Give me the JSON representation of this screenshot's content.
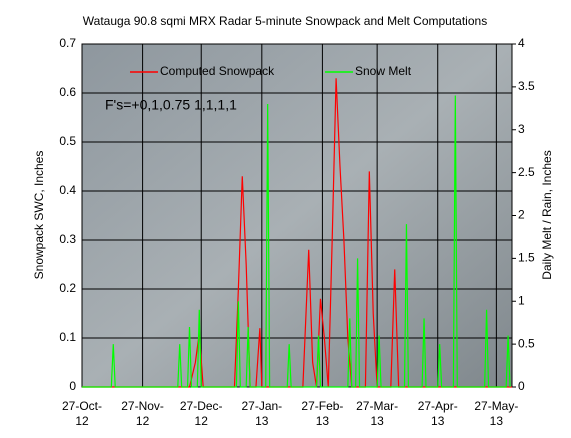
{
  "chart_data": {
    "type": "line",
    "title": "Watauga 90.8 sqmi MRX Radar 5-minute Snowpack and Melt Computations",
    "annotation": "F's=+0,1,0.75 1,1,1,1",
    "ylabel": "Snowpack SWC, Inches",
    "y2label": "Daily Melt / Rain, Inches",
    "xlim": [
      0,
      220
    ],
    "xticks": [
      {
        "value": 0,
        "label": "27-Oct-\n12"
      },
      {
        "value": 31,
        "label": "27-Nov-\n12"
      },
      {
        "value": 61,
        "label": "27-Dec-\n12"
      },
      {
        "value": 92,
        "label": "27-Jan-\n13"
      },
      {
        "value": 123,
        "label": "27-Feb-\n13"
      },
      {
        "value": 151,
        "label": "27-Mar-\n13"
      },
      {
        "value": 182,
        "label": "27-Apr-\n13"
      },
      {
        "value": 212,
        "label": "27-May-\n13"
      }
    ],
    "ylim": [
      0,
      0.7
    ],
    "yticks": [
      0,
      0.1,
      0.2,
      0.3,
      0.4,
      0.5,
      0.6,
      0.7
    ],
    "y2lim": [
      0,
      4
    ],
    "y2ticks": [
      0,
      0.5,
      1,
      1.5,
      2,
      2.5,
      3,
      3.5,
      4
    ],
    "grid": true,
    "legend": "top",
    "series": [
      {
        "name": "Computed Snowpack",
        "color": "#ff0000",
        "axis": "y",
        "x": [
          0,
          55,
          58,
          60,
          62,
          78,
          80,
          82,
          84,
          86,
          89,
          91,
          92,
          113,
          116,
          118,
          120,
          122,
          124,
          126,
          128,
          130,
          132,
          134,
          136,
          138,
          145,
          147,
          149,
          151,
          158,
          160,
          162,
          220
        ],
        "values": [
          0,
          0,
          0.05,
          0.11,
          0,
          0,
          0.2,
          0.43,
          0.25,
          0,
          0,
          0.12,
          0,
          0,
          0.28,
          0.05,
          0,
          0.18,
          0.1,
          0,
          0.3,
          0.63,
          0.45,
          0.3,
          0.1,
          0,
          0,
          0.44,
          0.15,
          0,
          0,
          0.24,
          0,
          0
        ]
      },
      {
        "name": "Snow Melt",
        "color": "#00ff00",
        "axis": "y2",
        "x": [
          0,
          15,
          16,
          17,
          49,
          50,
          51,
          54,
          55,
          56,
          59,
          60,
          61,
          79,
          80,
          81,
          84,
          85,
          86,
          94,
          95,
          96,
          105,
          106,
          107,
          120,
          121,
          122,
          136,
          137,
          138,
          140,
          141,
          142,
          151,
          152,
          153,
          165,
          166,
          167,
          174,
          175,
          176,
          182,
          183,
          184,
          190,
          191,
          192,
          206,
          207,
          208,
          217,
          218,
          219
        ],
        "values": [
          0,
          0,
          0.5,
          0,
          0,
          0.5,
          0,
          0,
          0.7,
          0,
          0,
          0.9,
          0,
          0,
          1.0,
          0,
          0,
          0.7,
          0,
          0,
          3.3,
          0,
          0,
          0.5,
          0,
          0,
          0.6,
          0,
          0,
          0.8,
          0,
          0,
          1.5,
          0,
          0,
          0.6,
          0,
          0,
          1.9,
          0,
          0,
          0.8,
          0,
          0,
          0.5,
          0,
          0,
          3.4,
          0,
          0,
          0.9,
          0,
          0,
          0.6,
          0
        ]
      }
    ]
  }
}
